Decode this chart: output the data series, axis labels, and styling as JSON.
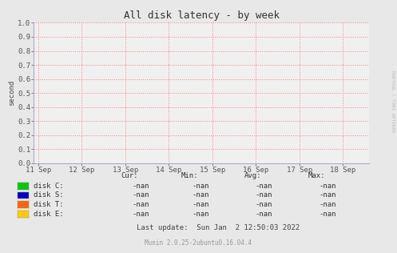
{
  "title": "All disk latency - by week",
  "ylabel": "second",
  "background_color": "#e8e8e8",
  "plot_bg_color": "#f0f0f0",
  "grid_color": "#ff6666",
  "axis_color": "#aaaacc",
  "x_ticks": [
    "11 Sep",
    "12 Sep",
    "13 Sep",
    "14 Sep",
    "15 Sep",
    "16 Sep",
    "17 Sep",
    "18 Sep"
  ],
  "x_tick_positions": [
    0,
    1,
    2,
    3,
    4,
    5,
    6,
    7
  ],
  "ylim": [
    0.0,
    1.0
  ],
  "yticks": [
    0.0,
    0.1,
    0.2,
    0.3,
    0.4,
    0.5,
    0.6,
    0.7,
    0.8,
    0.9,
    1.0
  ],
  "legend_entries": [
    {
      "label": "disk C:",
      "color": "#00cc00"
    },
    {
      "label": "disk S:",
      "color": "#0000cc"
    },
    {
      "label": "disk T:",
      "color": "#ff6600"
    },
    {
      "label": "disk E:",
      "color": "#ffcc00"
    }
  ],
  "legend_stats": {
    "cur_label": "Cur:",
    "min_label": "Min:",
    "avg_label": "Avg:",
    "max_label": "Max:",
    "values": [
      "-nan",
      "-nan",
      "-nan",
      "-nan"
    ]
  },
  "last_update": "Last update:  Sun Jan  2 12:50:03 2022",
  "footer": "Munin 2.0.25-2ubuntu0.16.04.4",
  "watermark": "RRDTOOL / TOBI OETIKER",
  "title_fontsize": 9,
  "axis_fontsize": 6.5,
  "legend_fontsize": 6.5,
  "footer_fontsize": 5.5
}
